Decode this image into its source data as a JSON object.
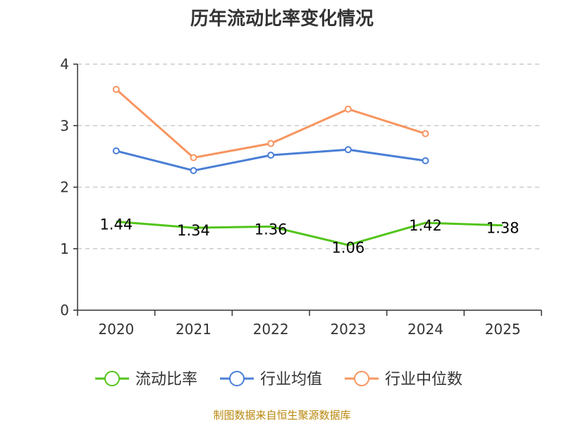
{
  "chart_data": {
    "type": "line",
    "title": "历年流动比率变化情况",
    "categories": [
      "2020",
      "2021",
      "2022",
      "2023",
      "2024",
      "2025"
    ],
    "ylim": [
      0,
      4
    ],
    "yticks": [
      0,
      1,
      2,
      3,
      4
    ],
    "grid": true,
    "legend_position": "bottom",
    "series": [
      {
        "name": "流动比率",
        "color": "#52c41a",
        "values": [
          1.44,
          1.34,
          1.36,
          1.06,
          1.42,
          1.38
        ],
        "labels": [
          "1.44",
          "1.34",
          "1.36",
          "1.06",
          "1.42",
          "1.38"
        ],
        "show_labels": true
      },
      {
        "name": "行业均值",
        "color": "#4a7fd6",
        "values": [
          2.59,
          2.27,
          2.52,
          2.61,
          2.43,
          null
        ],
        "show_labels": false
      },
      {
        "name": "行业中位数",
        "color": "#f89560",
        "values": [
          3.59,
          2.48,
          2.71,
          3.27,
          2.87,
          null
        ],
        "show_labels": false
      }
    ]
  },
  "source_text": "制图数据来自恒生聚源数据库"
}
